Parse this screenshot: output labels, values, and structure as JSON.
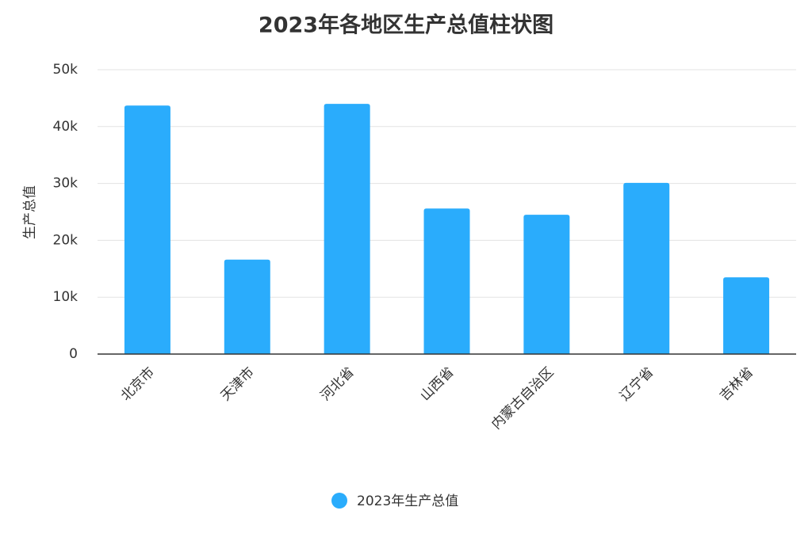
{
  "chart_data": {
    "type": "bar",
    "title": "2023年各地区生产总值柱状图",
    "y_label": "生产总值",
    "categories": [
      "北京市",
      "天津市",
      "河北省",
      "山西省",
      "内蒙古自治区",
      "辽宁省",
      "吉林省"
    ],
    "series": [
      {
        "name": "2023年生产总值",
        "color": "#2aacfc",
        "values": [
          43700,
          16600,
          44000,
          25600,
          24500,
          30100,
          13500
        ]
      }
    ],
    "ylim": [
      0,
      50000
    ],
    "yticks": [
      0,
      {
        "value": 10000,
        "label": "10k"
      },
      {
        "value": 20000,
        "label": "20k"
      },
      {
        "value": 30000,
        "label": "30k"
      },
      {
        "value": 40000,
        "label": "40k"
      },
      {
        "value": 50000,
        "label": "50k"
      }
    ],
    "grid": true
  }
}
